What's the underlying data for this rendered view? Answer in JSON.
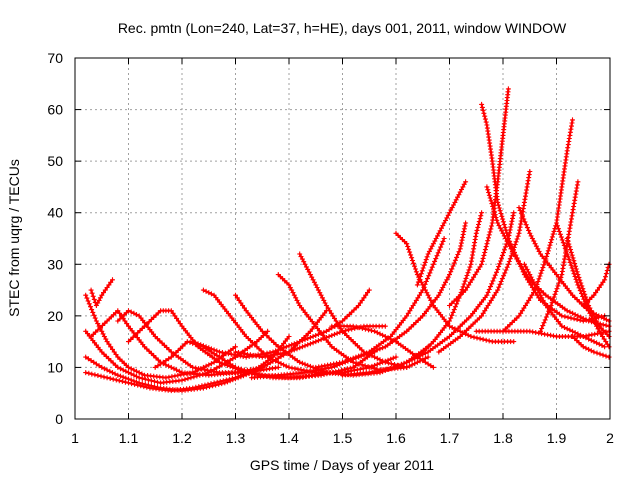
{
  "chart_data": {
    "type": "scatter",
    "title": "Rec. pmtn (Lon=240, Lat=37, h=HE), days 001, 2011, window WINDOW",
    "xlabel": "GPS time / Days of year 2011",
    "ylabel": "STEC from uqrg / TECUs",
    "xlim": [
      1.0,
      2.0
    ],
    "ylim": [
      0,
      70
    ],
    "xticks": [
      "1",
      "1.1",
      "1.2",
      "1.3",
      "1.4",
      "1.5",
      "1.6",
      "1.7",
      "1.8",
      "1.9",
      "2"
    ],
    "yticks": [
      "0",
      "10",
      "20",
      "30",
      "40",
      "50",
      "60",
      "70"
    ],
    "grid": true,
    "marker": "plus",
    "color": "#ff0000",
    "series": [
      {
        "values": [
          [
            1.02,
            24
          ],
          [
            1.04,
            19
          ],
          [
            1.06,
            15
          ],
          [
            1.08,
            12
          ],
          [
            1.1,
            10
          ],
          [
            1.13,
            8.5
          ],
          [
            1.17,
            8
          ],
          [
            1.22,
            9
          ],
          [
            1.26,
            11
          ],
          [
            1.3,
            14
          ]
        ]
      },
      {
        "values": [
          [
            1.03,
            25
          ],
          [
            1.04,
            22
          ],
          [
            1.05,
            24
          ],
          [
            1.07,
            27
          ]
        ]
      },
      {
        "values": [
          [
            1.02,
            17
          ],
          [
            1.05,
            13
          ],
          [
            1.08,
            10
          ],
          [
            1.12,
            8
          ],
          [
            1.16,
            7
          ],
          [
            1.2,
            7.5
          ],
          [
            1.25,
            9
          ],
          [
            1.3,
            12
          ],
          [
            1.34,
            15
          ],
          [
            1.36,
            17
          ]
        ]
      },
      {
        "values": [
          [
            1.02,
            12
          ],
          [
            1.05,
            10
          ],
          [
            1.08,
            8.5
          ],
          [
            1.12,
            7
          ],
          [
            1.16,
            6
          ],
          [
            1.2,
            5.5
          ],
          [
            1.24,
            6
          ],
          [
            1.28,
            7
          ],
          [
            1.33,
            9
          ],
          [
            1.37,
            12
          ],
          [
            1.4,
            16
          ]
        ]
      },
      {
        "values": [
          [
            1.02,
            9
          ],
          [
            1.06,
            8
          ],
          [
            1.1,
            7
          ],
          [
            1.14,
            6
          ],
          [
            1.18,
            5.5
          ],
          [
            1.22,
            6
          ],
          [
            1.26,
            7
          ],
          [
            1.3,
            8
          ],
          [
            1.35,
            10
          ],
          [
            1.4,
            13
          ],
          [
            1.44,
            17
          ],
          [
            1.47,
            21
          ]
        ]
      },
      {
        "values": [
          [
            1.03,
            16
          ],
          [
            1.06,
            19
          ],
          [
            1.08,
            21
          ],
          [
            1.1,
            18
          ],
          [
            1.13,
            14
          ],
          [
            1.16,
            11
          ],
          [
            1.2,
            9
          ],
          [
            1.25,
            8.5
          ],
          [
            1.3,
            9
          ],
          [
            1.35,
            10
          ]
        ]
      },
      {
        "values": [
          [
            1.08,
            19
          ],
          [
            1.1,
            21
          ],
          [
            1.12,
            20
          ],
          [
            1.15,
            16
          ],
          [
            1.18,
            13
          ],
          [
            1.22,
            10
          ],
          [
            1.27,
            9
          ],
          [
            1.32,
            9
          ],
          [
            1.38,
            10
          ]
        ]
      },
      {
        "values": [
          [
            1.1,
            15
          ],
          [
            1.13,
            18
          ],
          [
            1.16,
            21
          ],
          [
            1.18,
            21
          ],
          [
            1.2,
            18
          ],
          [
            1.23,
            14
          ],
          [
            1.27,
            11
          ],
          [
            1.32,
            9
          ],
          [
            1.37,
            8
          ],
          [
            1.42,
            8
          ],
          [
            1.47,
            9
          ]
        ]
      },
      {
        "values": [
          [
            1.15,
            10
          ],
          [
            1.18,
            12
          ],
          [
            1.21,
            15
          ],
          [
            1.24,
            14
          ],
          [
            1.27,
            12
          ],
          [
            1.3,
            10
          ],
          [
            1.35,
            8.5
          ],
          [
            1.4,
            8
          ],
          [
            1.46,
            8.5
          ],
          [
            1.52,
            10
          ],
          [
            1.56,
            13
          ]
        ]
      },
      {
        "values": [
          [
            1.24,
            25
          ],
          [
            1.26,
            24
          ],
          [
            1.29,
            20
          ],
          [
            1.32,
            16
          ],
          [
            1.36,
            12
          ],
          [
            1.4,
            10
          ],
          [
            1.45,
            9
          ],
          [
            1.5,
            9
          ],
          [
            1.55,
            10
          ],
          [
            1.6,
            12
          ]
        ]
      },
      {
        "values": [
          [
            1.3,
            24
          ],
          [
            1.32,
            21
          ],
          [
            1.35,
            17
          ],
          [
            1.38,
            14
          ],
          [
            1.42,
            11
          ],
          [
            1.47,
            9
          ],
          [
            1.52,
            8.5
          ],
          [
            1.57,
            9
          ],
          [
            1.62,
            11
          ],
          [
            1.66,
            14
          ]
        ]
      },
      {
        "values": [
          [
            1.38,
            28
          ],
          [
            1.4,
            26
          ],
          [
            1.42,
            22
          ],
          [
            1.45,
            18
          ],
          [
            1.48,
            14
          ],
          [
            1.52,
            11
          ],
          [
            1.57,
            9.5
          ],
          [
            1.62,
            10
          ],
          [
            1.66,
            12
          ]
        ]
      },
      {
        "values": [
          [
            1.42,
            32
          ],
          [
            1.44,
            28
          ],
          [
            1.47,
            22
          ],
          [
            1.5,
            17
          ],
          [
            1.54,
            13
          ],
          [
            1.58,
            11
          ],
          [
            1.62,
            10
          ]
        ]
      },
      {
        "values": [
          [
            1.22,
            15
          ],
          [
            1.27,
            13
          ],
          [
            1.32,
            12
          ],
          [
            1.37,
            13
          ],
          [
            1.42,
            15
          ],
          [
            1.47,
            17
          ],
          [
            1.5,
            19
          ],
          [
            1.53,
            22
          ],
          [
            1.55,
            25
          ]
        ]
      },
      {
        "values": [
          [
            1.3,
            13
          ],
          [
            1.35,
            12
          ],
          [
            1.4,
            13
          ],
          [
            1.45,
            15
          ],
          [
            1.5,
            17
          ],
          [
            1.54,
            18
          ],
          [
            1.58,
            18
          ]
        ]
      },
      {
        "values": [
          [
            1.33,
            8
          ],
          [
            1.38,
            8.5
          ],
          [
            1.43,
            9
          ],
          [
            1.48,
            10
          ],
          [
            1.53,
            12
          ],
          [
            1.58,
            14
          ],
          [
            1.62,
            17
          ],
          [
            1.65,
            20
          ],
          [
            1.68,
            24
          ],
          [
            1.7,
            28
          ],
          [
            1.72,
            33
          ],
          [
            1.73,
            38
          ]
        ]
      },
      {
        "values": [
          [
            1.5,
            8.5
          ],
          [
            1.55,
            9
          ],
          [
            1.6,
            10
          ],
          [
            1.64,
            12
          ],
          [
            1.67,
            15
          ],
          [
            1.7,
            19
          ],
          [
            1.72,
            24
          ],
          [
            1.74,
            30
          ],
          [
            1.75,
            36
          ],
          [
            1.76,
            40
          ]
        ]
      },
      {
        "values": [
          [
            1.45,
            10
          ],
          [
            1.5,
            11
          ],
          [
            1.55,
            13
          ],
          [
            1.59,
            16
          ],
          [
            1.62,
            20
          ],
          [
            1.65,
            25
          ],
          [
            1.67,
            30
          ],
          [
            1.69,
            35
          ]
        ]
      },
      {
        "values": [
          [
            1.48,
            18
          ],
          [
            1.52,
            18
          ],
          [
            1.56,
            17
          ],
          [
            1.6,
            15
          ],
          [
            1.64,
            12
          ],
          [
            1.67,
            10
          ]
        ]
      },
      {
        "values": [
          [
            1.6,
            36
          ],
          [
            1.62,
            34
          ],
          [
            1.64,
            28
          ],
          [
            1.67,
            22
          ],
          [
            1.7,
            18
          ],
          [
            1.74,
            16
          ],
          [
            1.78,
            15
          ],
          [
            1.82,
            15
          ]
        ]
      },
      {
        "values": [
          [
            1.64,
            26
          ],
          [
            1.66,
            32
          ],
          [
            1.68,
            36
          ],
          [
            1.7,
            40
          ],
          [
            1.72,
            44
          ],
          [
            1.73,
            46
          ]
        ]
      },
      {
        "values": [
          [
            1.62,
            11
          ],
          [
            1.66,
            13
          ],
          [
            1.7,
            16
          ],
          [
            1.74,
            20
          ],
          [
            1.77,
            24
          ],
          [
            1.79,
            29
          ],
          [
            1.81,
            35
          ],
          [
            1.82,
            40
          ]
        ]
      },
      {
        "values": [
          [
            1.68,
            13
          ],
          [
            1.72,
            16
          ],
          [
            1.76,
            20
          ],
          [
            1.79,
            25
          ],
          [
            1.81,
            30
          ],
          [
            1.83,
            36
          ],
          [
            1.84,
            42
          ],
          [
            1.85,
            48
          ]
        ]
      },
      {
        "values": [
          [
            1.7,
            22
          ],
          [
            1.73,
            25
          ],
          [
            1.76,
            30
          ],
          [
            1.78,
            38
          ],
          [
            1.79,
            46
          ],
          [
            1.8,
            55
          ],
          [
            1.81,
            64
          ]
        ]
      },
      {
        "values": [
          [
            1.76,
            61
          ],
          [
            1.77,
            57
          ],
          [
            1.78,
            50
          ],
          [
            1.79,
            42
          ],
          [
            1.81,
            35
          ],
          [
            1.84,
            28
          ],
          [
            1.87,
            23
          ],
          [
            1.91,
            20
          ],
          [
            1.95,
            19
          ],
          [
            1.99,
            20
          ]
        ]
      },
      {
        "values": [
          [
            1.77,
            45
          ],
          [
            1.79,
            38
          ],
          [
            1.82,
            32
          ],
          [
            1.85,
            27
          ],
          [
            1.88,
            24
          ],
          [
            1.92,
            21
          ],
          [
            1.96,
            19
          ],
          [
            2.0,
            18
          ]
        ]
      },
      {
        "values": [
          [
            1.83,
            41
          ],
          [
            1.85,
            36
          ],
          [
            1.87,
            32
          ],
          [
            1.9,
            28
          ],
          [
            1.93,
            24
          ],
          [
            1.96,
            21
          ],
          [
            2.0,
            19
          ]
        ]
      },
      {
        "values": [
          [
            1.8,
            17
          ],
          [
            1.83,
            20
          ],
          [
            1.86,
            25
          ],
          [
            1.88,
            31
          ],
          [
            1.9,
            38
          ],
          [
            1.91,
            45
          ],
          [
            1.92,
            52
          ],
          [
            1.93,
            58
          ]
        ]
      },
      {
        "values": [
          [
            1.84,
            30
          ],
          [
            1.86,
            26
          ],
          [
            1.88,
            22
          ],
          [
            1.91,
            18
          ],
          [
            1.95,
            16
          ],
          [
            1.99,
            14
          ]
        ]
      },
      {
        "values": [
          [
            1.87,
            17
          ],
          [
            1.89,
            22
          ],
          [
            1.91,
            28
          ],
          [
            1.92,
            34
          ],
          [
            1.93,
            40
          ],
          [
            1.94,
            46
          ]
        ]
      },
      {
        "values": [
          [
            1.9,
            38
          ],
          [
            1.92,
            32
          ],
          [
            1.94,
            26
          ],
          [
            1.96,
            21
          ],
          [
            1.98,
            17
          ],
          [
            2.0,
            14
          ]
        ]
      },
      {
        "values": [
          [
            1.92,
            35
          ],
          [
            1.94,
            28
          ],
          [
            1.96,
            22
          ],
          [
            1.98,
            18
          ],
          [
            2.0,
            16
          ]
        ]
      },
      {
        "values": [
          [
            1.93,
            16
          ],
          [
            1.95,
            14
          ],
          [
            1.97,
            13
          ],
          [
            2.0,
            12
          ]
        ]
      },
      {
        "values": [
          [
            1.95,
            22
          ],
          [
            1.97,
            24
          ],
          [
            1.99,
            27
          ],
          [
            2.0,
            30
          ]
        ]
      },
      {
        "values": [
          [
            1.75,
            17
          ],
          [
            1.8,
            17
          ],
          [
            1.85,
            17
          ],
          [
            1.9,
            16
          ],
          [
            1.95,
            16
          ],
          [
            2.0,
            17
          ]
        ]
      }
    ]
  }
}
